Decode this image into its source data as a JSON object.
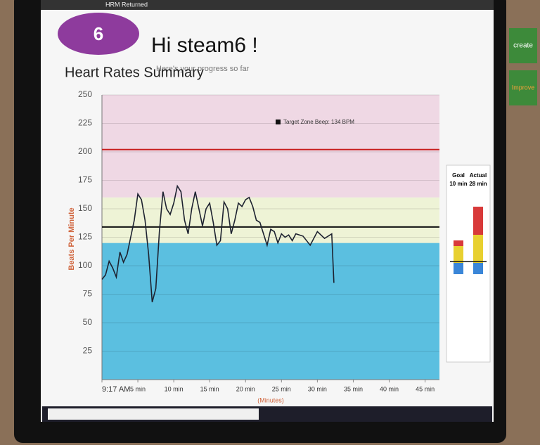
{
  "header": {
    "window_title": "HRM Returned",
    "badge": "6",
    "greeting": "Hi steam6 !",
    "subtitle": "Here's your progress so far"
  },
  "stickers": [
    "create",
    "Improve"
  ],
  "chart_data": {
    "type": "line",
    "title": "Heart Rates Summary",
    "y_label": "Beats Per Minute",
    "x_label": "(Minutes)",
    "xlim": [
      0,
      47
    ],
    "xticks": [
      {
        "value": 0,
        "label": "9:17 AM"
      },
      {
        "value": 5,
        "label": "5 min"
      },
      {
        "value": 10,
        "label": "10 min"
      },
      {
        "value": 15,
        "label": "15 min"
      },
      {
        "value": 20,
        "label": "20 min"
      },
      {
        "value": 25,
        "label": "25 min"
      },
      {
        "value": 30,
        "label": "30 min"
      },
      {
        "value": 35,
        "label": "35 min"
      },
      {
        "value": 40,
        "label": "40 min"
      },
      {
        "value": 45,
        "label": "45 min"
      }
    ],
    "ylim": [
      0,
      250
    ],
    "yticks": [
      25,
      50,
      75,
      100,
      125,
      150,
      175,
      200,
      225,
      250
    ],
    "grid": true,
    "zones": [
      {
        "from": 0,
        "to": 120,
        "color": "#5bbfe0"
      },
      {
        "from": 120,
        "to": 160,
        "color": "#eef3d6"
      },
      {
        "from": 160,
        "to": 250,
        "color": "#efd8e4"
      }
    ],
    "reference_lines": [
      {
        "value": 202,
        "color": "#c81e1e"
      },
      {
        "value": 134,
        "color": "#111111",
        "name": "Target Zone Beep: 134 BPM"
      }
    ],
    "series": [
      {
        "color": "#1d2230",
        "x": [
          0,
          0.5,
          1,
          1.5,
          2,
          2.5,
          3,
          3.5,
          4,
          4.5,
          5,
          5.5,
          6,
          6.5,
          7,
          7.5,
          8,
          8.5,
          9,
          9.5,
          10,
          10.5,
          11,
          11.5,
          12,
          12.5,
          13,
          13.5,
          14,
          14.5,
          15,
          15.5,
          16,
          16.5,
          17,
          17.5,
          18,
          18.5,
          19,
          19.5,
          20,
          20.5,
          21,
          21.5,
          22,
          22.5,
          23,
          23.5,
          24,
          24.5,
          25,
          25.5,
          26,
          26.5,
          27,
          28,
          29,
          30,
          31,
          32,
          32.3
        ],
        "values": [
          88,
          92,
          104,
          98,
          90,
          112,
          103,
          110,
          125,
          140,
          163,
          158,
          140,
          110,
          68,
          80,
          130,
          165,
          150,
          145,
          155,
          170,
          165,
          140,
          128,
          150,
          165,
          150,
          135,
          150,
          155,
          138,
          118,
          122,
          156,
          150,
          128,
          140,
          155,
          152,
          158,
          160,
          152,
          140,
          138,
          128,
          118,
          132,
          130,
          120,
          128,
          125,
          127,
          122,
          128,
          126,
          118,
          130,
          124,
          128,
          85
        ]
      }
    ],
    "side_panel": {
      "bars": [
        {
          "name": "Goal",
          "label": "10 min",
          "segments": [
            2,
            3,
            1
          ]
        },
        {
          "name": "Actual",
          "label": "28 min",
          "segments": [
            2,
            5,
            5
          ]
        }
      ],
      "colors": [
        "#3a86d8",
        "#e8d030",
        "#d83a3a"
      ]
    }
  }
}
